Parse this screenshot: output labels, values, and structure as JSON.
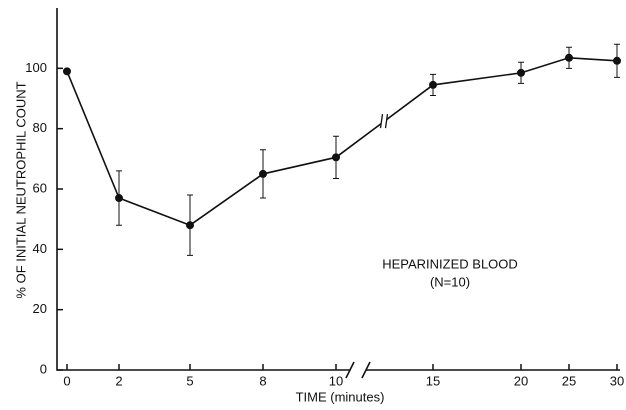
{
  "chart_data": {
    "type": "line",
    "x_label": "TIME (minutes)",
    "y_label": "% OF INITIAL NEUTROPHIL COUNT",
    "annotations": [
      "HEPARINIZED BLOOD",
      "(N=10)"
    ],
    "categories": [
      "0",
      "2",
      "5",
      "8",
      "10",
      "15",
      "20",
      "25",
      "30"
    ],
    "values": [
      99,
      57,
      48,
      65,
      70.5,
      94.5,
      98.5,
      103.5,
      102.5
    ],
    "errors": [
      null,
      9,
      10,
      8,
      7,
      3.5,
      3.5,
      3.5,
      5.5
    ],
    "color": "#111111",
    "ylim": [
      0,
      120
    ],
    "yticks": [
      0,
      20,
      40,
      60,
      80,
      100
    ]
  }
}
